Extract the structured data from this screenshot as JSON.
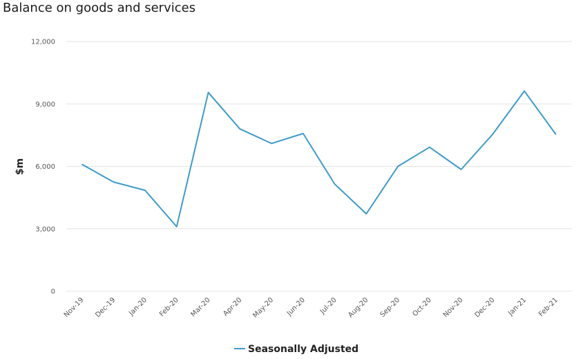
{
  "chart_data": {
    "type": "line",
    "title": "Balance on goods and services",
    "xlabel": "",
    "ylabel": "$m",
    "ylim": [
      0,
      12000
    ],
    "yticks": [
      0,
      3000,
      6000,
      9000,
      12000
    ],
    "ytick_labels": [
      "0",
      "3,000",
      "6,000",
      "9,000",
      "12,000"
    ],
    "categories": [
      "Nov-19",
      "Dec-19",
      "Jan-20",
      "Feb-20",
      "Mar-20",
      "Apr-20",
      "May-20",
      "Jun-20",
      "Jul-20",
      "Aug-20",
      "Sep-20",
      "Oct-20",
      "Nov-20",
      "Dec-20",
      "Jan-21",
      "Feb-21"
    ],
    "series": [
      {
        "name": "Seasonally Adjusted",
        "color": "#3b9bcb",
        "values": [
          6100,
          5250,
          4850,
          3100,
          9550,
          7800,
          7100,
          7580,
          5150,
          3720,
          6000,
          6920,
          5850,
          7550,
          9620,
          7530
        ]
      }
    ],
    "legend_position": "bottom-center",
    "grid": true
  }
}
